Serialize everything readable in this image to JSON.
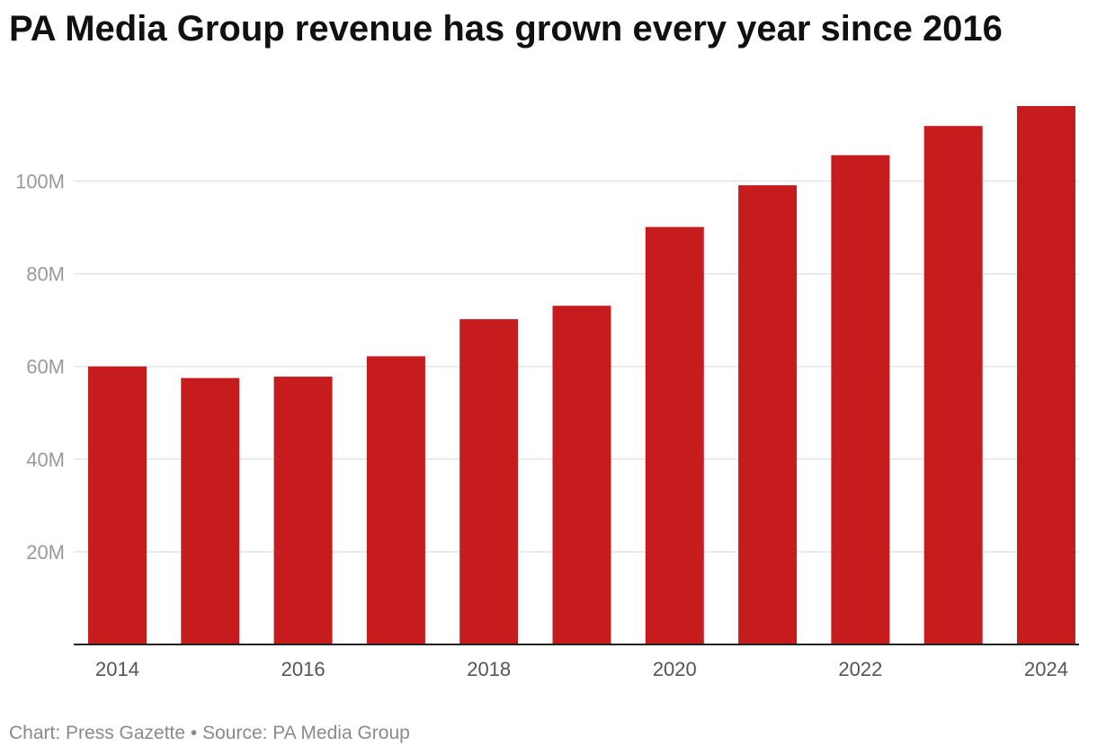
{
  "chart_data": {
    "type": "bar",
    "title": "PA Media Group revenue has grown every year since 2016",
    "categories": [
      "2014",
      "2015",
      "2016",
      "2017",
      "2018",
      "2019",
      "2020",
      "2021",
      "2022",
      "2023",
      "2024"
    ],
    "values": [
      60000000,
      57500000,
      57800000,
      62200000,
      70200000,
      73100000,
      90100000,
      99100000,
      105600000,
      111900000,
      116200000
    ],
    "x_tick_labels": [
      "2014",
      "2016",
      "2018",
      "2020",
      "2022",
      "2024"
    ],
    "y_ticks": [
      20000000,
      40000000,
      60000000,
      80000000,
      100000000
    ],
    "y_tick_labels": [
      "20M",
      "40M",
      "60M",
      "80M",
      "100M"
    ],
    "ylim": [
      0,
      116200000
    ],
    "xlabel": "",
    "ylabel": "",
    "grid": true,
    "bar_color": "#c71c1e"
  },
  "footer": {
    "credit": "Chart: Press Gazette • Source: PA Media Group"
  }
}
